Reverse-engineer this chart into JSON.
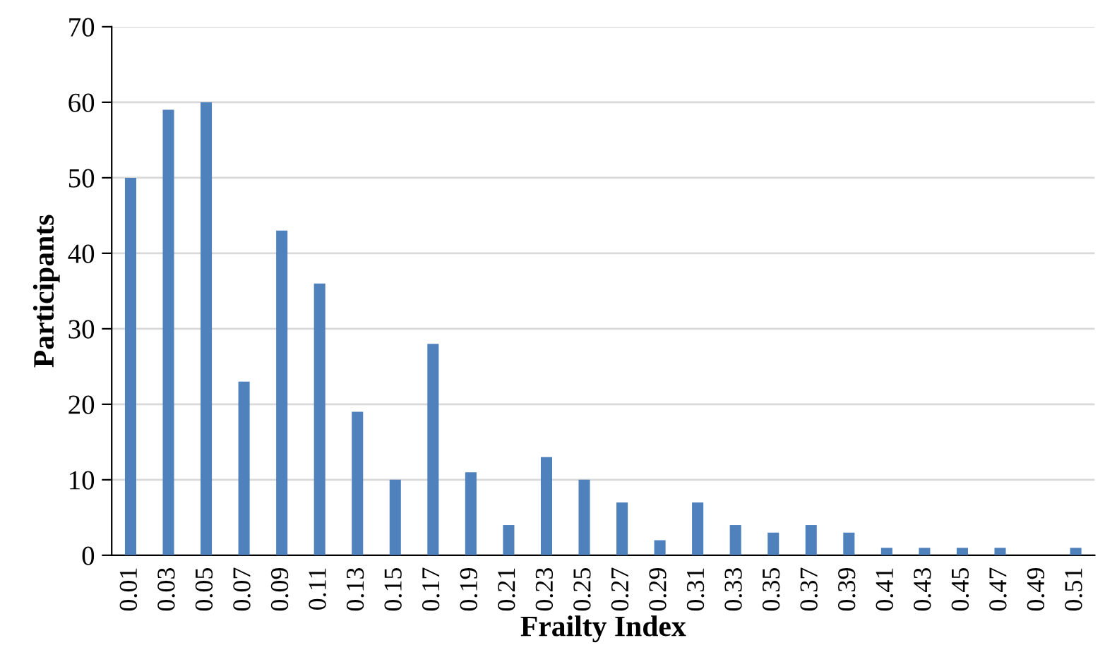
{
  "chart_data": {
    "type": "bar",
    "xlabel": "Frailty Index",
    "ylabel": "Participants",
    "categories": [
      "0.01",
      "0.03",
      "0.05",
      "0.07",
      "0.09",
      "0.11",
      "0.13",
      "0.15",
      "0.17",
      "0.19",
      "0.21",
      "0.23",
      "0.25",
      "0.27",
      "0.29",
      "0.31",
      "0.33",
      "0.35",
      "0.37",
      "0.39",
      "0.41",
      "0.43",
      "0.45",
      "0.47",
      "0.49",
      "0.51"
    ],
    "values": [
      50,
      59,
      60,
      23,
      43,
      36,
      19,
      10,
      28,
      11,
      4,
      13,
      10,
      7,
      2,
      7,
      4,
      3,
      4,
      3,
      1,
      1,
      1,
      1,
      0,
      1
    ],
    "color": "#4f81bd",
    "ylim": [
      0,
      70
    ],
    "yticks": [
      0,
      10,
      20,
      30,
      40,
      50,
      60,
      70
    ],
    "grid": "y",
    "legend": false
  }
}
